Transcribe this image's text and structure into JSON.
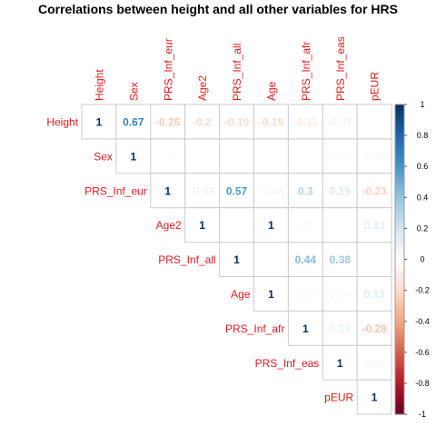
{
  "chart_data": {
    "type": "heatmap",
    "title": "Correlations between height and all other variables for HRS",
    "layout": "upper-triangle",
    "variables": [
      "Height",
      "Sex",
      "PRS_Inf_eur",
      "Age2",
      "PRS_Inf_all",
      "Age",
      "PRS_Inf_afr",
      "PRS_Inf_eas",
      "pEUR"
    ],
    "matrix": [
      [
        1,
        0.67,
        -0.26,
        -0.2,
        -0.19,
        -0.19,
        -0.11,
        -0.07,
        null
      ],
      [
        null,
        1,
        0.01,
        null,
        null,
        null,
        null,
        0.02,
        0.04
      ],
      [
        null,
        null,
        1,
        -0.07,
        0.57,
        -0.04,
        0.3,
        0.15,
        -0.23
      ],
      [
        null,
        null,
        null,
        1,
        null,
        1,
        0.02,
        0.01,
        0.13
      ],
      [
        null,
        null,
        null,
        null,
        1,
        null,
        0.44,
        0.38,
        null
      ],
      [
        null,
        null,
        null,
        null,
        null,
        1,
        0.03,
        0.04,
        0.13
      ],
      [
        null,
        null,
        null,
        null,
        null,
        null,
        1,
        0.11,
        -0.28
      ],
      [
        null,
        null,
        null,
        null,
        null,
        null,
        null,
        1,
        0.05
      ],
      [
        null,
        null,
        null,
        null,
        null,
        null,
        null,
        null,
        1
      ]
    ],
    "colorbar": {
      "range": [
        -1,
        1
      ],
      "ticks": [
        "1",
        "0.8",
        "0.6",
        "0.4",
        "0.2",
        "0",
        "-0.2",
        "-0.4",
        "-0.6",
        "-0.8",
        "-1"
      ],
      "colors": [
        "#67001F",
        "#B2182B",
        "#D6604D",
        "#F4A582",
        "#FDDBC7",
        "#FFFFFF",
        "#D1E5F0",
        "#92C5DE",
        "#4393C3",
        "#2166AC",
        "#053061"
      ]
    },
    "label_color": "#E41A1C"
  }
}
